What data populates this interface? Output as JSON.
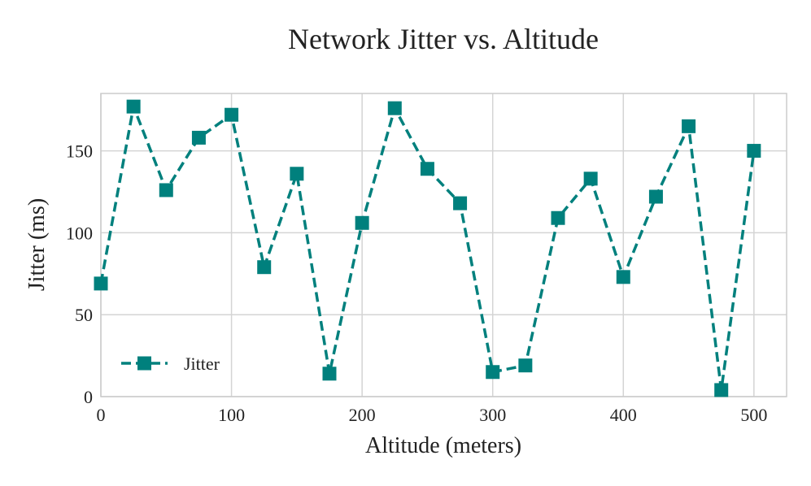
{
  "chart_data": {
    "type": "line",
    "title": "Network Jitter vs. Altitude",
    "xlabel": "Altitude (meters)",
    "ylabel": "Jitter (ms)",
    "xlim": [
      0,
      525
    ],
    "ylim": [
      0,
      185
    ],
    "xticks": [
      0,
      100,
      200,
      300,
      400,
      500
    ],
    "yticks": [
      0,
      50,
      100,
      150
    ],
    "grid": true,
    "legend_position": "lower-left",
    "x": [
      0,
      25,
      50,
      75,
      100,
      125,
      150,
      175,
      200,
      225,
      250,
      275,
      300,
      325,
      350,
      375,
      400,
      425,
      450,
      475,
      500
    ],
    "series": [
      {
        "name": "Jitter",
        "color": "#00807d",
        "line_style": "dashed",
        "marker": "square",
        "values": [
          69,
          177,
          126,
          158,
          172,
          79,
          136,
          14,
          106,
          176,
          139,
          118,
          15,
          19,
          109,
          133,
          73,
          122,
          165,
          4,
          150
        ]
      }
    ]
  }
}
